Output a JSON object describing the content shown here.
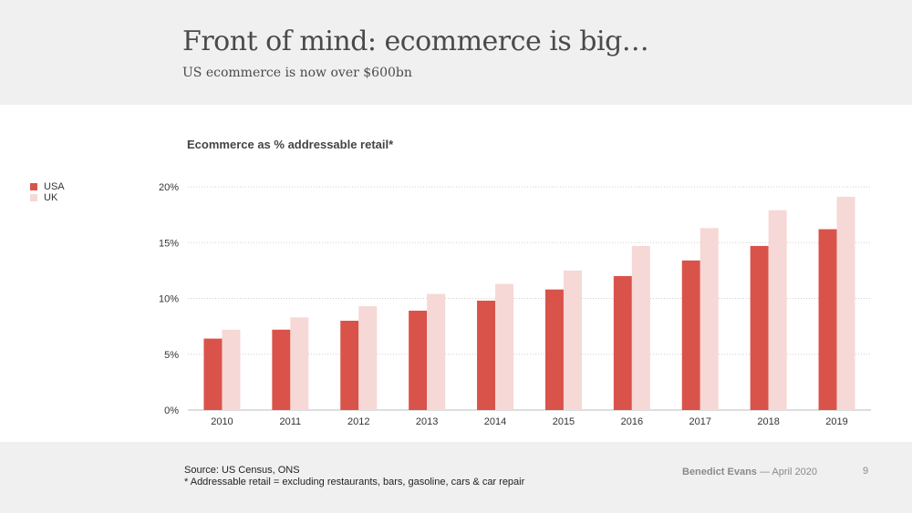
{
  "header": {
    "title": "Front of mind: ecommerce is big…",
    "subtitle": "US ecommerce is now over $600bn"
  },
  "footer": {
    "source_line1": "Source: US Census, ONS",
    "source_line2": "* Addressable retail = excluding restaurants, bars, gasoline, cars & car repair",
    "author": "Benedict Evans",
    "date": "— April 2020",
    "page": "9"
  },
  "colors": {
    "usa": "#d9534a",
    "uk": "#f6d8d6",
    "grid": "#cfcfcf",
    "axis": "#bdbdbd"
  },
  "chart_data": {
    "type": "bar",
    "title": "Ecommerce as % addressable retail*",
    "categories": [
      "2010",
      "2011",
      "2012",
      "2013",
      "2014",
      "2015",
      "2016",
      "2017",
      "2018",
      "2019"
    ],
    "series": [
      {
        "name": "USA",
        "values": [
          6.4,
          7.2,
          8.0,
          8.9,
          9.8,
          10.8,
          12.0,
          13.4,
          14.7,
          16.2
        ]
      },
      {
        "name": "UK",
        "values": [
          7.2,
          8.3,
          9.3,
          10.4,
          11.3,
          12.5,
          14.7,
          16.3,
          17.9,
          19.1
        ]
      }
    ],
    "y_ticks": [
      "0%",
      "5%",
      "10%",
      "15%",
      "20%"
    ],
    "ylim": [
      0,
      20
    ],
    "grid": true,
    "legend_position": "left"
  }
}
